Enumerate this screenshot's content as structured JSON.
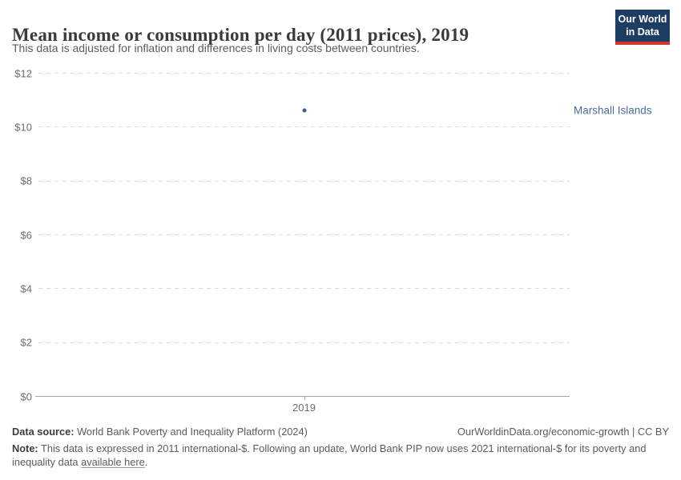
{
  "header": {
    "title": "Mean income or consumption per day (2011 prices), 2019",
    "subtitle": "This data is adjusted for inflation and differences in living costs between countries.",
    "logo": {
      "line1": "Our World",
      "line2": "in Data"
    }
  },
  "chart_data": {
    "type": "scatter",
    "title": "Mean income or consumption per day (2011 prices), 2019",
    "x": [
      2019
    ],
    "series": [
      {
        "name": "Marshall Islands",
        "x": 2019,
        "y": 10.6,
        "color": "#3d5c94",
        "label_color": "#4c6a9c"
      }
    ],
    "xlabel": "",
    "ylabel": "",
    "ylim": [
      0,
      12
    ],
    "ytick_values": [
      0,
      2,
      4,
      6,
      8,
      10,
      12
    ],
    "ytick_labels": [
      "$0",
      "$2",
      "$4",
      "$6",
      "$8",
      "$10",
      "$12"
    ],
    "xtick_labels": [
      "2019"
    ],
    "grid": "horizontal-dashed",
    "legend": "none"
  },
  "colors": {
    "grid": "#dcdcdc",
    "axis": "#a5a5a5",
    "tick_text": "#6e6e6e",
    "point": "#3d5c94",
    "entity_label": "#4c6a9c",
    "logo_bg": "#1d3d63",
    "logo_stripe": "#d7352f"
  },
  "footer": {
    "datasource_label": "Data source:",
    "datasource_text": " World Bank Poverty and Inequality Platform (2024)",
    "credit": "OurWorldinData.org/economic-growth | CC BY",
    "note_label": "Note:",
    "note_text": " This data is expressed in 2011 international-$. Following an update, World Bank PIP now uses 2021 international-$ for its poverty and inequality data ",
    "note_link": "available here",
    "note_suffix": "."
  }
}
